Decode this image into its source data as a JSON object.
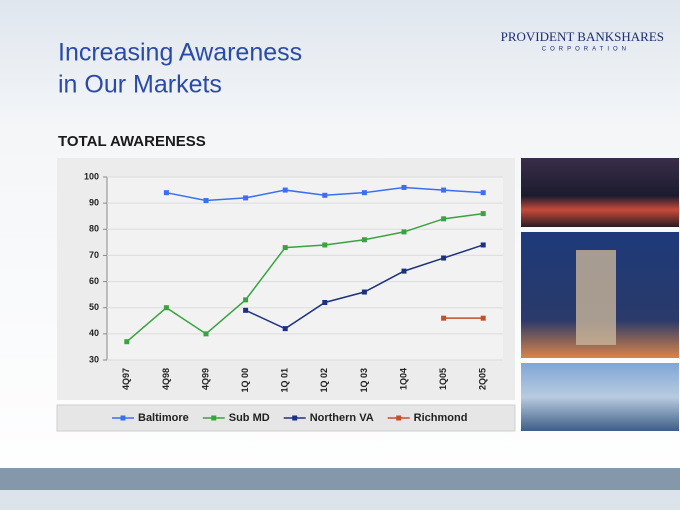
{
  "header": {
    "title_lines": [
      "Increasing Awareness",
      "in Our Markets"
    ],
    "logo": "PROVIDENT BANKSHARES",
    "logo_sub": "CORPORATION"
  },
  "chart_data": {
    "type": "line",
    "title": "TOTAL AWARENESS",
    "categories": [
      "4Q97",
      "4Q98",
      "4Q99",
      "1Q 00",
      "1Q 01",
      "1Q 02",
      "1Q 03",
      "1Q04",
      "1Q05",
      "2Q05"
    ],
    "series": [
      {
        "name": "Baltimore",
        "color": "#3a6ff0",
        "values": [
          null,
          94,
          91,
          92,
          95,
          93,
          94,
          96,
          95,
          94
        ]
      },
      {
        "name": "Sub MD",
        "color": "#3aa341",
        "values": [
          37,
          50,
          40,
          53,
          73,
          74,
          76,
          79,
          84,
          86
        ]
      },
      {
        "name": "Northern VA",
        "color": "#1c3280",
        "values": [
          null,
          null,
          null,
          49,
          42,
          52,
          56,
          64,
          69,
          74
        ]
      },
      {
        "name": "Richmond",
        "color": "#c4502a",
        "values": [
          null,
          null,
          null,
          null,
          null,
          null,
          null,
          null,
          46,
          46
        ]
      }
    ],
    "ylim": [
      30,
      100
    ],
    "yticks": [
      30,
      40,
      50,
      60,
      70,
      80,
      90,
      100
    ],
    "grid": true,
    "legend": "bottom"
  }
}
